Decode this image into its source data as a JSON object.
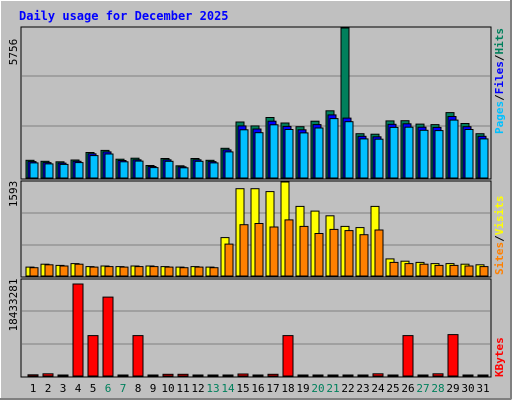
{
  "title": "Daily usage for December 2025",
  "colors": {
    "hits": "#00805c",
    "files": "#0000ff",
    "pages": "#00c0ff",
    "visits": "#ffff00",
    "sites": "#ff8000",
    "kbytes": "#ff0000",
    "weekend_day": "#00805c",
    "weekday": "#000000"
  },
  "chart_data": [
    {
      "type": "bar",
      "panel": "hits-files-pages",
      "ymax_label": "5756",
      "ylim": [
        0,
        5756
      ],
      "legend": [
        "Pages",
        "/",
        "Files",
        "/",
        "Hits"
      ],
      "series": [
        {
          "name": "Hits",
          "values": [
            680,
            640,
            620,
            690,
            980,
            1060,
            720,
            760,
            480,
            750,
            470,
            750,
            680,
            1140,
            2150,
            2000,
            2320,
            2110,
            1970,
            2180,
            2580,
            5756,
            1700,
            1680,
            2190,
            2200,
            2070,
            2050,
            2510,
            2090,
            1700
          ]
        },
        {
          "name": "Files",
          "values": [
            630,
            590,
            570,
            640,
            930,
            1000,
            670,
            700,
            440,
            700,
            430,
            700,
            630,
            1080,
            2000,
            1880,
            2180,
            1980,
            1850,
            2050,
            2420,
            2300,
            1600,
            1580,
            2060,
            2080,
            1950,
            1940,
            2360,
            1970,
            1600
          ]
        },
        {
          "name": "Pages",
          "values": [
            580,
            540,
            520,
            590,
            860,
            920,
            620,
            650,
            400,
            640,
            390,
            640,
            580,
            1000,
            1850,
            1740,
            2040,
            1860,
            1730,
            1920,
            2280,
            2160,
            1500,
            1490,
            1940,
            1950,
            1830,
            1820,
            2220,
            1860,
            1500
          ]
        }
      ]
    },
    {
      "type": "bar",
      "panel": "visits-sites",
      "ymax_label": "1593",
      "ylim": [
        0,
        1593
      ],
      "legend": [
        "Sites",
        "/",
        "Visits"
      ],
      "series": [
        {
          "name": "Visits",
          "values": [
            150,
            200,
            180,
            210,
            160,
            170,
            160,
            170,
            170,
            160,
            150,
            160,
            150,
            650,
            1480,
            1480,
            1430,
            1593,
            1180,
            1100,
            1020,
            840,
            820,
            1180,
            290,
            250,
            230,
            210,
            210,
            200,
            190
          ]
        },
        {
          "name": "Sites",
          "values": [
            140,
            190,
            170,
            200,
            150,
            160,
            150,
            160,
            160,
            150,
            140,
            150,
            140,
            540,
            870,
            890,
            830,
            950,
            840,
            720,
            790,
            770,
            700,
            780,
            230,
            210,
            200,
            180,
            180,
            170,
            160
          ]
        }
      ]
    },
    {
      "type": "bar",
      "panel": "kbytes",
      "ymax_label": "18433281",
      "ylim": [
        0,
        18433281
      ],
      "legend": [
        "KBytes"
      ],
      "series": [
        {
          "name": "KBytes",
          "values": [
            250000,
            450000,
            200000,
            18433281,
            8100000,
            15800000,
            200000,
            8100000,
            200000,
            350000,
            350000,
            200000,
            200000,
            200000,
            400000,
            200000,
            350000,
            8100000,
            200000,
            200000,
            200000,
            200000,
            200000,
            450000,
            200000,
            8100000,
            200000,
            450000,
            8300000,
            200000,
            200000
          ]
        }
      ]
    }
  ],
  "days": [
    {
      "label": "1",
      "weekend": false
    },
    {
      "label": "2",
      "weekend": false
    },
    {
      "label": "3",
      "weekend": false
    },
    {
      "label": "4",
      "weekend": false
    },
    {
      "label": "5",
      "weekend": false
    },
    {
      "label": "6",
      "weekend": true
    },
    {
      "label": "7",
      "weekend": true
    },
    {
      "label": "8",
      "weekend": false
    },
    {
      "label": "9",
      "weekend": false
    },
    {
      "label": "10",
      "weekend": false
    },
    {
      "label": "11",
      "weekend": false
    },
    {
      "label": "12",
      "weekend": false
    },
    {
      "label": "13",
      "weekend": true
    },
    {
      "label": "14",
      "weekend": true
    },
    {
      "label": "15",
      "weekend": false
    },
    {
      "label": "16",
      "weekend": false
    },
    {
      "label": "17",
      "weekend": false
    },
    {
      "label": "18",
      "weekend": false
    },
    {
      "label": "19",
      "weekend": false
    },
    {
      "label": "20",
      "weekend": true
    },
    {
      "label": "21",
      "weekend": true
    },
    {
      "label": "22",
      "weekend": false
    },
    {
      "label": "23",
      "weekend": false
    },
    {
      "label": "24",
      "weekend": false
    },
    {
      "label": "25",
      "weekend": false
    },
    {
      "label": "26",
      "weekend": false
    },
    {
      "label": "27",
      "weekend": true
    },
    {
      "label": "28",
      "weekend": true
    },
    {
      "label": "29",
      "weekend": false
    },
    {
      "label": "30",
      "weekend": false
    },
    {
      "label": "31",
      "weekend": false
    }
  ]
}
